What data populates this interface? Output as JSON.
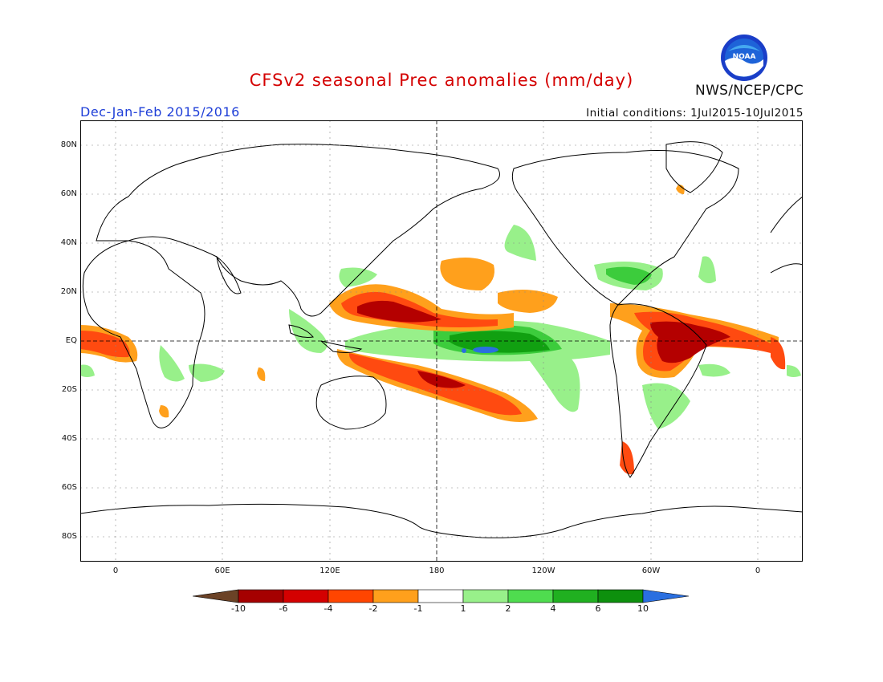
{
  "title": "CFSv2 seasonal Prec anomalies (mm/day)",
  "season": "Dec-Jan-Feb 2015/2016",
  "initial_conditions": "Initial conditions: 1Jul2015-10Jul2015",
  "agency": "NWS/NCEP/CPC",
  "logo_text": "NOAA",
  "lat_ticks": [
    "80N",
    "60N",
    "40N",
    "20N",
    "EQ",
    "20S",
    "40S",
    "60S",
    "80S"
  ],
  "lon_ticks": [
    "0",
    "60E",
    "120E",
    "180",
    "120W",
    "60W",
    "0"
  ],
  "colorbar": {
    "labels": [
      "-10",
      "-6",
      "-4",
      "-2",
      "-1",
      "1",
      "2",
      "4",
      "6",
      "10"
    ],
    "colors": [
      "#6b4226",
      "#a50000",
      "#d40000",
      "#ff4500",
      "#ffa01c",
      "#ffffff",
      "#98f08a",
      "#4fdc4f",
      "#20b020",
      "#0d900d",
      "#2a6fe0"
    ]
  },
  "colors": {
    "title": "#d40000",
    "season": "#1f3fd8",
    "dry_strong": "#b40000",
    "dry_mod": "#ff4a10",
    "dry_light": "#ffa01c",
    "wet_light": "#98f08a",
    "wet_mod": "#3ccc3c",
    "wet_strong": "#11a011",
    "wet_extreme": "#2a6fe0"
  }
}
